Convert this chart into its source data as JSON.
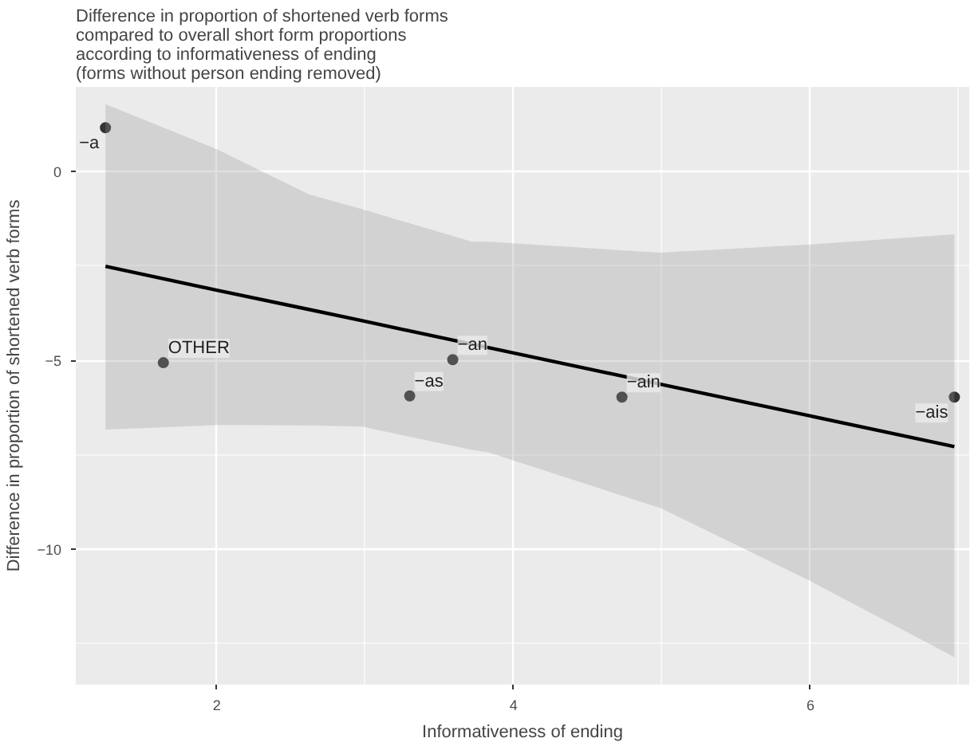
{
  "chart_data": {
    "type": "scatter",
    "title": "Difference in proportion of shortened verb forms\n compared to overall short form proportions\n according to informativeness of ending\n (forms without person ending removed)",
    "xlabel": "Informativeness of ending",
    "ylabel": "Difference in proportion of shortened verb forms",
    "xlim": [
      1.05,
      7.07
    ],
    "ylim": [
      -13.58,
      2.24
    ],
    "xticks": [
      2,
      4,
      6
    ],
    "yticks": [
      -10,
      -5,
      0
    ],
    "grid": true,
    "marker": "circle",
    "series": [
      {
        "color": "#333333",
        "x": [
          1.25,
          1.64,
          3.3,
          3.59,
          4.73,
          6.97
        ],
        "values": [
          1.16,
          -5.06,
          -5.94,
          -4.98,
          -5.97,
          -5.97
        ]
      },
      {
        "type": "line",
        "color": "#000000",
        "marker": "none",
        "x": [
          1.25,
          2,
          2.62,
          2.98,
          3.72,
          3.83,
          4.99,
          6,
          6.97
        ],
        "values": [
          -2.51,
          -3.14,
          -3.65,
          -3.95,
          -4.57,
          -4.66,
          -5.63,
          -6.47,
          -7.28
        ],
        "lower": [
          -6.83,
          -6.71,
          -6.72,
          -6.75,
          -7.37,
          -7.43,
          -8.91,
          -10.84,
          -12.85
        ],
        "upper": [
          1.78,
          0.59,
          -0.6,
          -1.0,
          -1.86,
          -1.86,
          -2.15,
          -1.93,
          -1.66
        ]
      }
    ],
    "annotations": [
      {
        "text": "−a",
        "x": 1.25,
        "y": 1.16
      },
      {
        "text": "OTHER",
        "x": 1.64,
        "y": -5.06
      },
      {
        "text": "−as",
        "x": 3.3,
        "y": -5.94
      },
      {
        "text": "−an",
        "x": 3.59,
        "y": -4.98
      },
      {
        "text": "−ain",
        "x": 4.73,
        "y": -5.97
      },
      {
        "text": "−ais",
        "x": 6.97,
        "y": -5.97
      }
    ]
  }
}
